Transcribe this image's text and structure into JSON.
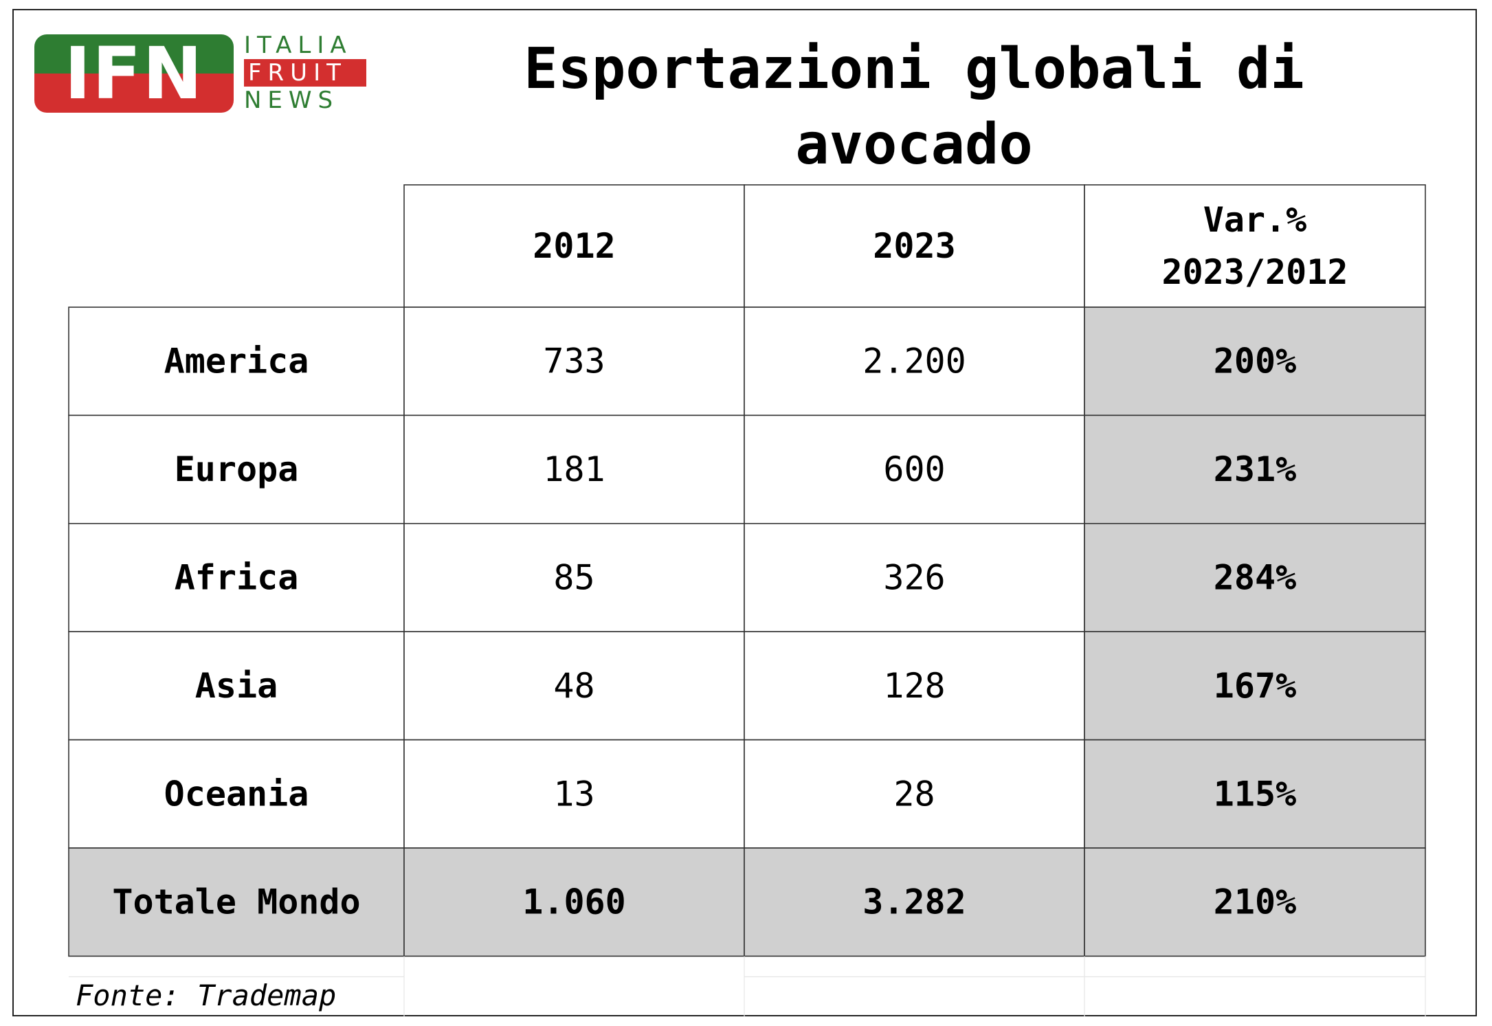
{
  "logo": {
    "mark": "IFN",
    "line1": "ITALIA",
    "line2": "FRUIT",
    "line3": "NEWS",
    "colors": {
      "green": "#2e7d32",
      "red": "#d32f2f"
    }
  },
  "title": "Esportazioni globali di avocado",
  "source": "Fonte: Trademap",
  "chart_data": {
    "type": "table",
    "columns": [
      "",
      "2012",
      "2023",
      "Var.% 2023/2012"
    ],
    "header_lines": [
      [
        ""
      ],
      [
        "2012"
      ],
      [
        "2023"
      ],
      [
        "Var.%",
        "2023/2012"
      ]
    ],
    "rows": [
      {
        "label": "America",
        "y2012": "733",
        "y2023": "2.200",
        "var": "200%"
      },
      {
        "label": "Europa",
        "y2012": "181",
        "y2023": "600",
        "var": "231%"
      },
      {
        "label": "Africa",
        "y2012": "85",
        "y2023": "326",
        "var": "284%"
      },
      {
        "label": "Asia",
        "y2012": "48",
        "y2023": "128",
        "var": "167%"
      },
      {
        "label": "Oceania",
        "y2012": "13",
        "y2023": "28",
        "var": "115%"
      }
    ],
    "total": {
      "label": "Totale Mondo",
      "y2012": "1.060",
      "y2023": "3.282",
      "var": "210%"
    },
    "highlight_color": "#d0d0d0"
  }
}
